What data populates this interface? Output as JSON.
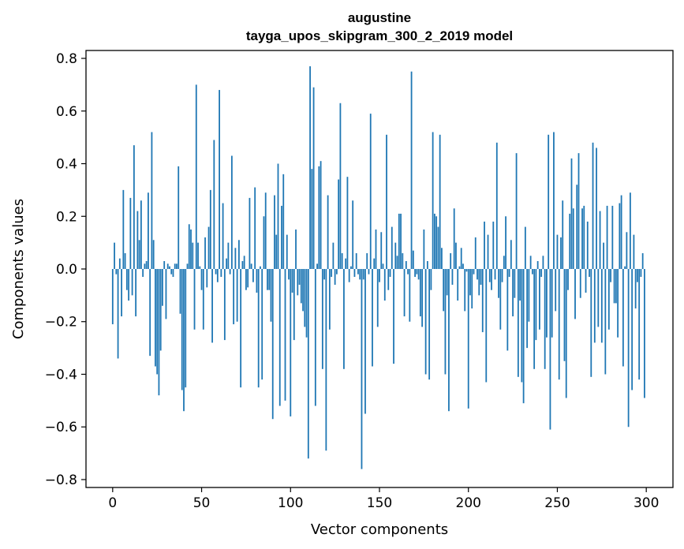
{
  "colors": {
    "bar": "#1f77b4",
    "axis": "#000000",
    "background": "#ffffff"
  },
  "chart_data": {
    "type": "bar",
    "title": "augustine",
    "subtitle": "tayga_upos_skipgram_300_2_2019 model",
    "xlabel": "Vector components",
    "ylabel": "Components values",
    "xlim": [
      -15,
      315
    ],
    "ylim": [
      -0.83,
      0.83
    ],
    "xticks": [
      0,
      50,
      100,
      150,
      200,
      250,
      300
    ],
    "xtick_labels": [
      "0",
      "50",
      "100",
      "150",
      "200",
      "250",
      "300"
    ],
    "yticks": [
      0.8,
      0.6,
      0.4,
      0.2,
      0.0,
      -0.2,
      -0.4,
      -0.6,
      -0.8
    ],
    "ytick_labels": [
      "0.8",
      "0.6",
      "0.4",
      "0.2",
      "0.0",
      "−0.2",
      "−0.4",
      "−0.6",
      "−0.8"
    ],
    "grid": false,
    "x": "component index 0-299",
    "values": [
      -0.21,
      0.1,
      -0.02,
      -0.34,
      0.04,
      -0.18,
      0.3,
      0.06,
      -0.08,
      -0.12,
      0.27,
      -0.1,
      0.47,
      -0.18,
      0.22,
      0.11,
      0.26,
      -0.03,
      0.02,
      0.03,
      0.29,
      -0.33,
      0.52,
      0.11,
      -0.37,
      -0.4,
      -0.48,
      -0.31,
      -0.14,
      0.03,
      -0.19,
      0.02,
      0.01,
      -0.02,
      -0.03,
      0.02,
      0.02,
      0.39,
      -0.17,
      -0.46,
      -0.54,
      -0.45,
      0.02,
      0.17,
      0.15,
      0.1,
      -0.23,
      0.7,
      0.1,
      0.01,
      -0.08,
      -0.23,
      0.12,
      -0.07,
      0.16,
      0.3,
      -0.28,
      0.49,
      -0.02,
      -0.05,
      0.68,
      -0.03,
      0.25,
      -0.27,
      0.04,
      0.1,
      -0.02,
      0.43,
      -0.21,
      0.08,
      -0.2,
      0.11,
      -0.45,
      0.03,
      0.05,
      -0.08,
      -0.07,
      0.27,
      0.02,
      -0.05,
      0.31,
      -0.09,
      -0.45,
      0.01,
      -0.42,
      0.2,
      0.29,
      -0.08,
      -0.08,
      -0.2,
      -0.57,
      0.28,
      0.13,
      0.4,
      -0.52,
      0.24,
      0.36,
      -0.5,
      0.13,
      -0.04,
      -0.56,
      -0.09,
      -0.27,
      0.15,
      -0.1,
      -0.06,
      -0.13,
      -0.16,
      -0.22,
      -0.26,
      -0.72,
      0.77,
      0.38,
      0.69,
      -0.52,
      0.02,
      0.39,
      0.41,
      -0.38,
      -0.04,
      -0.69,
      0.28,
      -0.23,
      -0.03,
      0.1,
      -0.06,
      -0.02,
      0.34,
      0.63,
      0.06,
      -0.38,
      0.04,
      0.35,
      -0.05,
      0.01,
      0.26,
      -0.03,
      0.06,
      -0.02,
      -0.04,
      -0.76,
      -0.04,
      -0.55,
      0.06,
      -0.02,
      0.59,
      -0.37,
      0.04,
      0.15,
      -0.22,
      -0.05,
      0.14,
      0.02,
      -0.12,
      0.51,
      -0.08,
      -0.03,
      0.16,
      -0.36,
      0.1,
      0.05,
      0.21,
      0.21,
      0.06,
      -0.18,
      0.03,
      -0.02,
      -0.2,
      0.75,
      0.07,
      -0.03,
      -0.02,
      -0.04,
      -0.18,
      -0.22,
      0.15,
      -0.4,
      0.03,
      -0.42,
      -0.08,
      0.52,
      0.21,
      0.2,
      0.16,
      0.51,
      0.08,
      -0.16,
      -0.4,
      -0.1,
      -0.54,
      0.06,
      -0.06,
      0.23,
      0.1,
      -0.12,
      0.01,
      0.08,
      0.02,
      -0.16,
      -0.01,
      -0.53,
      -0.1,
      -0.15,
      -0.02,
      0.12,
      -0.04,
      -0.1,
      -0.06,
      -0.24,
      0.18,
      -0.43,
      0.13,
      -0.05,
      -0.08,
      0.18,
      -0.04,
      0.48,
      -0.11,
      -0.23,
      -0.05,
      0.05,
      0.2,
      -0.31,
      -0.03,
      0.11,
      -0.18,
      -0.11,
      0.44,
      -0.41,
      -0.12,
      -0.43,
      -0.51,
      0.16,
      -0.3,
      -0.2,
      0.05,
      -0.02,
      -0.38,
      -0.27,
      0.03,
      -0.23,
      -0.03,
      0.05,
      -0.38,
      -0.26,
      0.51,
      -0.61,
      -0.26,
      0.52,
      -0.16,
      0.13,
      -0.42,
      0.12,
      0.26,
      -0.35,
      -0.49,
      -0.08,
      0.21,
      0.42,
      0.23,
      -0.19,
      0.32,
      0.44,
      -0.11,
      0.23,
      0.24,
      -0.09,
      0.18,
      -0.03,
      -0.41,
      0.48,
      -0.28,
      0.46,
      -0.22,
      0.22,
      -0.28,
      0.1,
      -0.4,
      0.24,
      -0.23,
      -0.05,
      0.24,
      -0.13,
      -0.13,
      -0.26,
      0.25,
      0.28,
      -0.37,
      0.01,
      0.14,
      -0.6,
      0.29,
      -0.46,
      0.13,
      -0.15,
      -0.05,
      -0.42,
      -0.03,
      0.06,
      -0.49
    ]
  }
}
